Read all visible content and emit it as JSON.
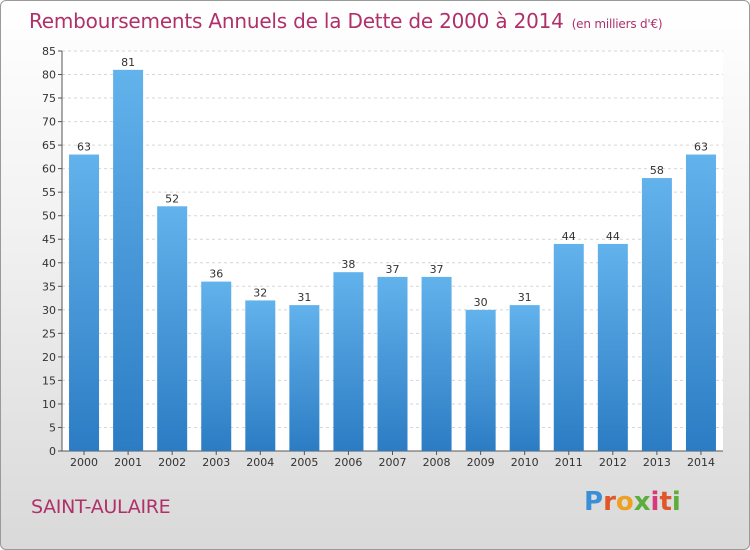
{
  "header": {
    "title": "Remboursements Annuels de la Dette de 2000 à 2014",
    "subtitle": "(en milliers d'€)"
  },
  "footer": {
    "place": "SAINT-AULAIRE",
    "logo": "Proxiti"
  },
  "colors": {
    "title": "#b0306a",
    "bar_top": "#62b2ec",
    "bar_bottom": "#2c7cc4"
  },
  "chart_data": {
    "type": "bar",
    "title": "Remboursements Annuels de la Dette de 2000 à 2014",
    "subtitle": "(en milliers d'€)",
    "xlabel": "",
    "ylabel": "",
    "categories": [
      "2000",
      "2001",
      "2002",
      "2003",
      "2004",
      "2005",
      "2006",
      "2007",
      "2008",
      "2009",
      "2010",
      "2011",
      "2012",
      "2013",
      "2014"
    ],
    "values": [
      63,
      81,
      52,
      36,
      32,
      31,
      38,
      37,
      37,
      30,
      31,
      44,
      44,
      58,
      63
    ],
    "ylim": [
      0,
      85
    ],
    "yticks": [
      0,
      5,
      10,
      15,
      20,
      25,
      30,
      35,
      40,
      45,
      50,
      55,
      60,
      65,
      70,
      75,
      80,
      85
    ],
    "grid": true,
    "legend": "none"
  }
}
